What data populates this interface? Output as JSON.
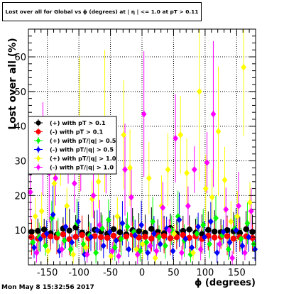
{
  "chart_data": {
    "type": "scatter",
    "title": "Lost over all for Global vs ϕ (degrees) at | η | <= 1.0 at pT > 0.11",
    "xlabel": "ϕ (degrees)",
    "ylabel": "Lost over all (%)",
    "xlim": [
      -180,
      180
    ],
    "ylim": [
      0,
      68
    ],
    "xticks": [
      -150,
      -100,
      -50,
      0,
      50,
      100,
      150
    ],
    "yticks": [
      10,
      20,
      30,
      40,
      50,
      60
    ],
    "grid": true,
    "legend_position": "left-middle",
    "series": [
      {
        "name": "(+) with pT > 0.1",
        "color": "#000000",
        "marker": "circle",
        "x": [
          -175,
          -165,
          -155,
          -145,
          -135,
          -125,
          -115,
          -105,
          -95,
          -85,
          -75,
          -65,
          -55,
          -45,
          -35,
          -25,
          -15,
          -5,
          5,
          15,
          25,
          35,
          45,
          55,
          65,
          75,
          85,
          95,
          105,
          115,
          125,
          135,
          145,
          155,
          165,
          175
        ],
        "y": [
          9.5,
          9.8,
          10.2,
          9.1,
          8.7,
          10.5,
          9.9,
          10.8,
          9.3,
          8.9,
          10.1,
          9.6,
          9.0,
          10.3,
          9.4,
          8.8,
          10.0,
          9.7,
          9.2,
          10.4,
          9.5,
          9.1,
          10.6,
          9.0,
          9.8,
          10.2,
          9.3,
          8.9,
          10.1,
          9.6,
          9.4,
          10.0,
          9.7,
          9.2,
          10.3,
          9.5
        ]
      },
      {
        "name": "(-) with pT > 0.1",
        "color": "#ff0000",
        "marker": "circle",
        "x": [
          -175,
          -165,
          -155,
          -145,
          -135,
          -125,
          -115,
          -105,
          -95,
          -85,
          -75,
          -65,
          -55,
          -45,
          -35,
          -25,
          -15,
          -5,
          5,
          15,
          25,
          35,
          45,
          55,
          65,
          75,
          85,
          95,
          105,
          115,
          125,
          135,
          145,
          155,
          165,
          175
        ],
        "y": [
          8.0,
          7.6,
          8.5,
          8.2,
          7.9,
          8.8,
          7.4,
          8.1,
          8.6,
          7.7,
          8.3,
          8.0,
          7.8,
          8.4,
          7.5,
          8.2,
          8.7,
          7.9,
          8.1,
          7.6,
          8.5,
          8.3,
          7.7,
          8.0,
          8.6,
          7.8,
          8.2,
          7.5,
          8.4,
          7.9,
          8.1,
          8.3,
          7.6,
          8.0,
          8.2,
          7.8
        ]
      },
      {
        "name": "(+) with pT/|q| > 0.5",
        "color": "#00ff00",
        "marker": "diamond",
        "x": [
          -173,
          -163,
          -153,
          -143,
          -133,
          -123,
          -113,
          -103,
          -93,
          -83,
          -73,
          -63,
          -53,
          -43,
          -33,
          -23,
          -13,
          -3,
          7,
          17,
          27,
          37,
          47,
          57,
          67,
          77,
          87,
          97,
          107,
          117,
          127,
          137,
          147,
          157,
          167,
          177
        ],
        "y": [
          6.5,
          8.0,
          5.5,
          13.5,
          9.0,
          7.0,
          4.5,
          12.0,
          6.0,
          8.5,
          3.5,
          10.5,
          13.0,
          5.0,
          7.5,
          11.0,
          9.5,
          4.0,
          6.5,
          12.5,
          8.0,
          5.5,
          10.0,
          14.0,
          7.0,
          3.0,
          9.0,
          11.5,
          6.0,
          13.5,
          8.5,
          4.5,
          10.5,
          7.5,
          12.0,
          6.0
        ]
      },
      {
        "name": "(-) with pT/|q| > 0.5",
        "color": "#0000ff",
        "marker": "diamond",
        "x": [
          -171,
          -161,
          -151,
          -141,
          -131,
          -121,
          -111,
          -101,
          -91,
          -81,
          -71,
          -61,
          -51,
          -41,
          -31,
          -21,
          -11,
          -1,
          9,
          19,
          29,
          39,
          49,
          59,
          69,
          79,
          89,
          99,
          109,
          119,
          129,
          139,
          149,
          159,
          169,
          179
        ],
        "y": [
          5.0,
          7.5,
          9.0,
          14.5,
          4.0,
          11.0,
          6.5,
          12.5,
          3.0,
          8.0,
          10.0,
          5.5,
          9.5,
          7.0,
          12.0,
          4.5,
          8.5,
          11.5,
          3.5,
          9.0,
          6.0,
          10.5,
          4.0,
          13.0,
          7.5,
          5.0,
          11.0,
          8.0,
          12.5,
          3.5,
          9.5,
          6.5,
          10.0,
          5.5,
          8.0,
          4.5
        ]
      },
      {
        "name": "(+) with pT/|q| > 1.0",
        "color": "#ffff00",
        "marker": "diamond",
        "x": [
          -169,
          -159,
          -149,
          -139,
          -129,
          -119,
          -109,
          -99,
          -89,
          -79,
          -69,
          -59,
          -49,
          -39,
          -29,
          -19,
          -9,
          1,
          11,
          21,
          31,
          41,
          51,
          61,
          71,
          81,
          91,
          101,
          111,
          121,
          131,
          141,
          151,
          161,
          171
        ],
        "y": [
          14.0,
          15.5,
          4.0,
          23.5,
          30.5,
          17.0,
          3.0,
          40.5,
          5.0,
          19.0,
          24.0,
          41.5,
          2.5,
          14.0,
          37.5,
          28.0,
          4.5,
          6.0,
          25.0,
          2.0,
          17.0,
          27.5,
          9.0,
          37.5,
          26.5,
          3.5,
          50.0,
          22.0,
          19.5,
          38.5,
          24.5,
          12.5,
          14.0,
          57.0,
          18.0
        ]
      },
      {
        "name": "(-) with pT/|q| > 1.0",
        "color": "#ff00ff",
        "marker": "diamond",
        "x": [
          -177,
          -167,
          -157,
          -147,
          -137,
          -127,
          -117,
          -107,
          -97,
          -87,
          -77,
          -67,
          -57,
          -47,
          -37,
          -27,
          -17,
          -7,
          3,
          13,
          23,
          33,
          43,
          53,
          63,
          73,
          83,
          93,
          103,
          113,
          123,
          133,
          143,
          153,
          163,
          173
        ],
        "y": [
          21.0,
          3.5,
          33.5,
          26.5,
          25.0,
          4.5,
          31.0,
          23.5,
          28.0,
          3.0,
          20.0,
          11.5,
          30.0,
          4.0,
          2.5,
          27.5,
          19.5,
          3.0,
          43.5,
          5.5,
          4.0,
          16.5,
          10.0,
          36.5,
          3.5,
          17.0,
          27.5,
          4.5,
          29.5,
          43.5,
          6.0,
          16.0,
          2.0,
          17.0,
          3.5,
          15.5
        ]
      }
    ]
  },
  "timestamp": "Mon May  8 15:32:56 2017"
}
